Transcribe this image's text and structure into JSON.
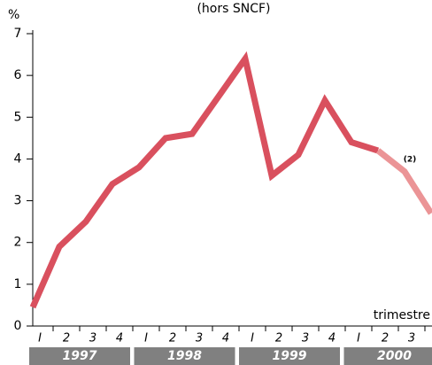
{
  "chart_data": {
    "type": "line",
    "subtitle": "(hors SNCF)",
    "ylabel": "%",
    "xlabel": "trimestre",
    "annotation": "(2)",
    "categories": [
      "I",
      "2",
      "3",
      "4",
      "I",
      "2",
      "3",
      "4",
      "I",
      "2",
      "3",
      "4",
      "I",
      "2",
      "3",
      "4"
    ],
    "years": [
      "1997",
      "1998",
      "1999",
      "2000"
    ],
    "series": [
      {
        "color": "#d9505e",
        "values": [
          0.45,
          1.9,
          2.5,
          3.4,
          3.8,
          4.5,
          4.6,
          5.5,
          6.4,
          3.6,
          4.1,
          5.4,
          4.4,
          4.2,
          null,
          null
        ]
      },
      {
        "color": "#eb9496",
        "values": [
          null,
          null,
          null,
          null,
          null,
          null,
          null,
          null,
          null,
          null,
          null,
          null,
          null,
          4.2,
          3.7,
          2.7
        ]
      }
    ],
    "ylim": [
      0,
      7
    ],
    "yticks": [
      0,
      1,
      2,
      3,
      4,
      5,
      6,
      7
    ]
  }
}
